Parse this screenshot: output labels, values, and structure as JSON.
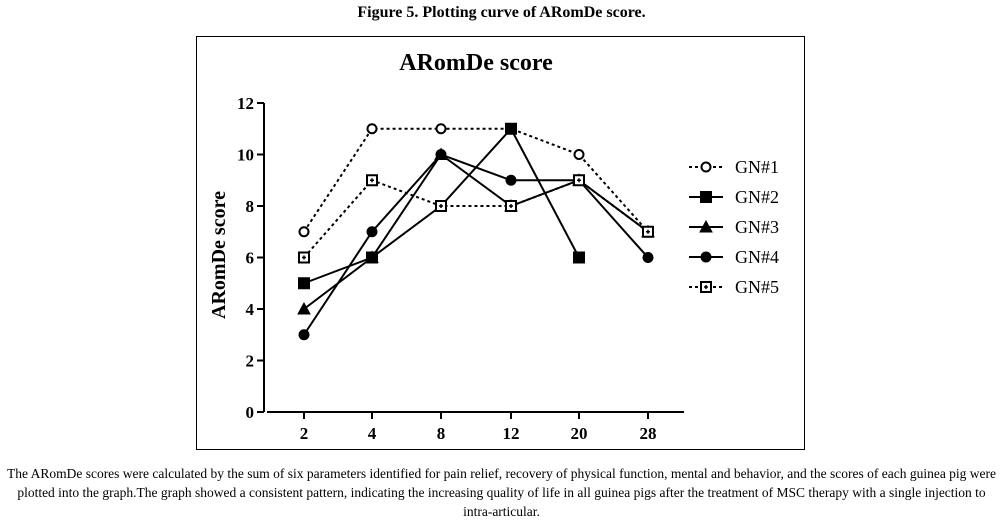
{
  "figure": {
    "title": "Figure 5. Plotting curve of ARomDe score.",
    "caption": "The ARomDe scores were calculated by the sum of six parameters identified for pain relief, recovery of physical function, mental and behavior, and the scores of each guinea pig were plotted into the graph.The graph showed a consistent pattern, indicating the increasing quality of life in all guinea pigs after the treatment of MSC therapy with a single injection to intra-articular."
  },
  "chart_data": {
    "type": "line",
    "title": "ARomDe score",
    "xlabel": "",
    "ylabel": "ARomDe score",
    "categories": [
      "2",
      "4",
      "8",
      "12",
      "20",
      "28"
    ],
    "ylim": [
      0,
      12
    ],
    "yticks": [
      0,
      2,
      4,
      6,
      8,
      10,
      12
    ],
    "grid": false,
    "legend_position": "right",
    "series": [
      {
        "name": "GN#1",
        "values": [
          7,
          11,
          11,
          11,
          10,
          7
        ],
        "marker": "open-circle",
        "line": "dashed"
      },
      {
        "name": "GN#2",
        "values": [
          5,
          6,
          8,
          11,
          6,
          null
        ],
        "marker": "square",
        "line": "solid"
      },
      {
        "name": "GN#3",
        "values": [
          4,
          6,
          10,
          8,
          9,
          7
        ],
        "marker": "triangle",
        "line": "solid"
      },
      {
        "name": "GN#4",
        "values": [
          3,
          7,
          10,
          9,
          9,
          6
        ],
        "marker": "circle",
        "line": "solid"
      },
      {
        "name": "GN#5",
        "values": [
          6,
          9,
          8,
          8,
          9,
          7
        ],
        "marker": "open-square",
        "line": "dashed"
      }
    ]
  }
}
